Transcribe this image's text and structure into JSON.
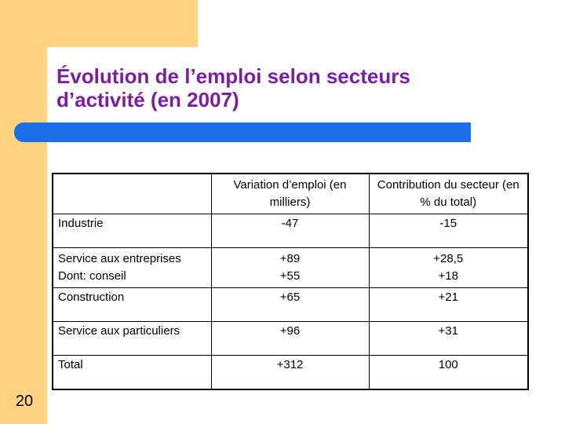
{
  "slide": {
    "title_line1": "Évolution de l’emploi selon secteurs",
    "title_line2": "d’activité (en 2007)",
    "number": "20"
  },
  "table": {
    "headers": {
      "col1": "",
      "col2_line1": "Variation d’emploi",
      "col2_line2": "(en milliers)",
      "col3_line1": "Contribution du secteur",
      "col3_line2": "(en % du total)"
    },
    "rows": [
      {
        "label": "Industrie",
        "variation": "-47",
        "contribution": "-15"
      },
      {
        "label": "Service aux entreprises",
        "sublabel": "Dont: conseil",
        "variation": "+89",
        "subvariation": "+55",
        "contribution": "+28,5",
        "subcontribution": "+18"
      },
      {
        "label": "Construction",
        "variation": "+65",
        "contribution": "+21"
      },
      {
        "label": "Service aux particuliers",
        "variation": "+96",
        "contribution": "+31"
      },
      {
        "label": "Total",
        "variation": "+312",
        "contribution": "100"
      }
    ]
  },
  "colors": {
    "accent_orange": "#ffd37f",
    "title_purple": "#7a1fa2",
    "bar_blue": "#1c6fe8"
  }
}
